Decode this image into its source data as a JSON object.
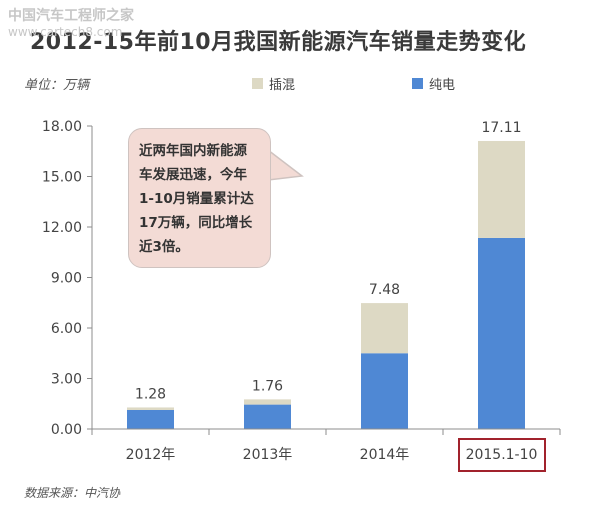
{
  "watermark": {
    "brand": "中国汽车工程师之家",
    "url": "www.cartech8.com"
  },
  "title": "2012-15年前10月我国新能源汽车销量走势变化",
  "unit_label": "单位：万辆",
  "legend": {
    "hybrid": "插混",
    "ev": "纯电"
  },
  "colors": {
    "hybrid": "#ddd9c4",
    "ev": "#4f88d4",
    "highlight": "#a1222c",
    "callout_bg": "#f3dbd5"
  },
  "callout_text": "近两年国内新能源车发展迅速，今年1-10月销量累计达17万辆，同比增长近3倍。",
  "source": "数据来源：中汽协",
  "highlighted_category": "2015.1-10",
  "chart_data": {
    "type": "bar",
    "stacked": true,
    "categories": [
      "2012年",
      "2013年",
      "2014年",
      "2015.1-10"
    ],
    "series": [
      {
        "name": "纯电",
        "values": [
          1.13,
          1.45,
          4.5,
          11.35
        ]
      },
      {
        "name": "插混",
        "values": [
          0.15,
          0.31,
          2.98,
          5.76
        ]
      }
    ],
    "totals": [
      1.28,
      1.76,
      7.48,
      17.11
    ],
    "total_labels": [
      "1.28",
      "1.76",
      "7.48",
      "17.11"
    ],
    "ylim": [
      0,
      18
    ],
    "yticks": [
      0,
      3,
      6,
      9,
      12,
      15,
      18
    ],
    "ytick_labels": [
      "0.00",
      "3.00",
      "6.00",
      "9.00",
      "12.00",
      "15.00",
      "18.00"
    ],
    "ylabel": "单位：万辆",
    "legend_position": "top",
    "grid": false
  }
}
